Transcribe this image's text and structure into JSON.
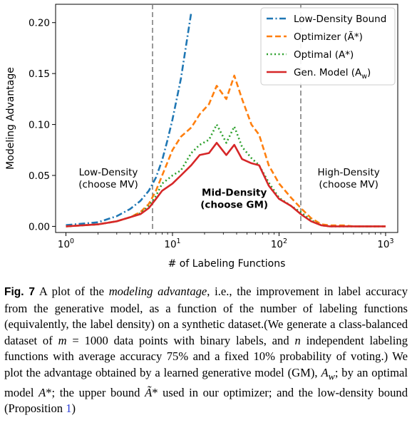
{
  "chart_data": {
    "type": "line",
    "xscale": "log",
    "xlim": [
      0.8,
      1300
    ],
    "ylim": [
      -0.006,
      0.218
    ],
    "xlabel": "# of Labeling Functions",
    "ylabel": "Modeling Advantage",
    "xticks": [
      {
        "value": 1,
        "base": "10",
        "exp": "0"
      },
      {
        "value": 10,
        "base": "10",
        "exp": "1"
      },
      {
        "value": 100,
        "base": "10",
        "exp": "2"
      },
      {
        "value": 1000,
        "base": "10",
        "exp": "3"
      }
    ],
    "yticks": [
      {
        "value": 0.0,
        "label": "0.00"
      },
      {
        "value": 0.05,
        "label": "0.05"
      },
      {
        "value": 0.1,
        "label": "0.10"
      },
      {
        "value": 0.15,
        "label": "0.15"
      },
      {
        "value": 0.2,
        "label": "0.20"
      }
    ],
    "vlines": [
      6.5,
      160
    ],
    "legend_position": "top-right",
    "regions": [
      {
        "lines": [
          "Low-Density",
          "(choose MV)"
        ],
        "x": 2.5,
        "y": 0.05,
        "bold": false
      },
      {
        "lines": [
          "Mid-Density",
          "(choose GM)"
        ],
        "x": 38,
        "y": 0.03,
        "bold": true
      },
      {
        "lines": [
          "High-Density",
          "(choose MV)"
        ],
        "x": 450,
        "y": 0.05,
        "bold": false
      }
    ],
    "series": [
      {
        "name": "Low-Density Bound",
        "color": "#1f77b4",
        "dash": "dashdot",
        "x": [
          1,
          2,
          3,
          4,
          5,
          6,
          7,
          8,
          9,
          10,
          12,
          15
        ],
        "y": [
          0.0012,
          0.004,
          0.01,
          0.017,
          0.025,
          0.035,
          0.048,
          0.065,
          0.085,
          0.105,
          0.145,
          0.21
        ]
      },
      {
        "name": "Optimizer (Ã*)",
        "color": "#ff7f0e",
        "dash": "dashed",
        "x": [
          1,
          2,
          3,
          4,
          5,
          6,
          7,
          8,
          10,
          12,
          15,
          18,
          22,
          26,
          32,
          38,
          45,
          55,
          65,
          80,
          100,
          130,
          160,
          200,
          250,
          300,
          400,
          500,
          700,
          1000
        ],
        "y": [
          0.0,
          0.002,
          0.005,
          0.009,
          0.014,
          0.022,
          0.035,
          0.05,
          0.075,
          0.088,
          0.097,
          0.11,
          0.12,
          0.138,
          0.125,
          0.148,
          0.125,
          0.1,
          0.09,
          0.06,
          0.042,
          0.028,
          0.018,
          0.008,
          0.002,
          0.001,
          0.001,
          0.0,
          0.0,
          0.0
        ]
      },
      {
        "name": "Optimal (A*)",
        "color": "#2ca02c",
        "dash": "dotted",
        "x": [
          1,
          2,
          3,
          4,
          5,
          6,
          7,
          8,
          10,
          12,
          15,
          18,
          22,
          26,
          32,
          38,
          45,
          55,
          65,
          80,
          100,
          130,
          160,
          200,
          250,
          300,
          400,
          500,
          700,
          1000
        ],
        "y": [
          0.0,
          0.002,
          0.005,
          0.009,
          0.013,
          0.02,
          0.03,
          0.042,
          0.05,
          0.055,
          0.072,
          0.08,
          0.085,
          0.1,
          0.082,
          0.098,
          0.078,
          0.067,
          0.06,
          0.043,
          0.028,
          0.02,
          0.014,
          0.006,
          0.001,
          0.0,
          0.0,
          0.0,
          0.0,
          0.0
        ]
      },
      {
        "name": "Gen. Model (A_w)",
        "color": "#d62728",
        "dash": "solid",
        "x": [
          1,
          2,
          3,
          4,
          5,
          6,
          7,
          8,
          10,
          12,
          15,
          18,
          22,
          26,
          32,
          38,
          45,
          55,
          65,
          80,
          100,
          130,
          160,
          200,
          250,
          300,
          400,
          500,
          700,
          1000
        ],
        "y": [
          0.0,
          0.002,
          0.005,
          0.009,
          0.012,
          0.018,
          0.027,
          0.035,
          0.042,
          0.05,
          0.06,
          0.07,
          0.072,
          0.082,
          0.07,
          0.08,
          0.066,
          0.062,
          0.06,
          0.04,
          0.027,
          0.02,
          0.012,
          0.005,
          0.001,
          0.0,
          0.0,
          0.0,
          0.0,
          0.0
        ]
      }
    ]
  },
  "caption": {
    "label": "Fig. 7",
    "text_html": " A plot of the <i>modeling advantage</i>, i.e., the improvement in label accuracy from the generative model, as a function of the number of labeling functions (equivalently, the label density) on a synthetic dataset.(We generate a class-balanced dataset of <i>m</i> = 1000 data points with binary labels, and <i>n</i> independent labeling functions with average accuracy 75% and a fixed 10% probability of voting.) We plot the advantage obtained by a learned generative model (GM), <i>A<sub>w</sub></i>; by an optimal model <i>A</i>*; the upper bound <i>Ã</i>* used in our optimizer; and the low-density bound (Proposition ",
    "ref": "1",
    "tail": ")"
  }
}
